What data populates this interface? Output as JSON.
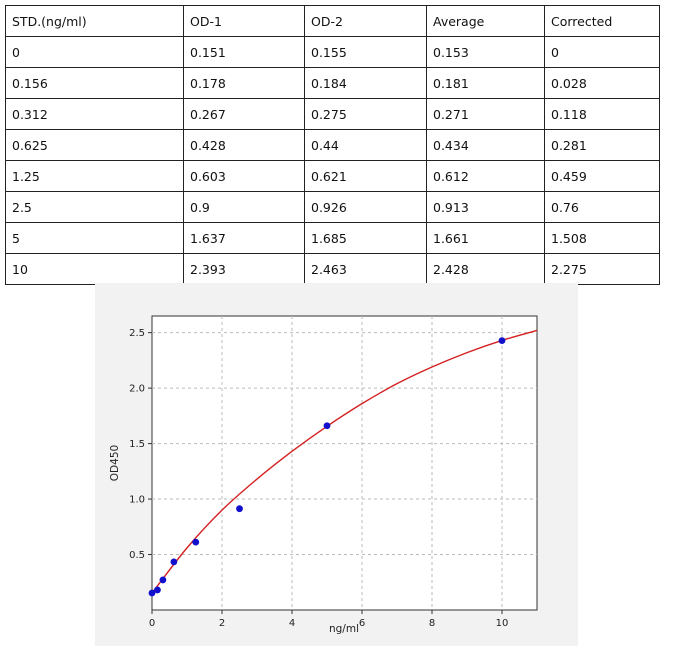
{
  "table": {
    "headers": [
      "STD.(ng/ml)",
      "OD-1",
      "OD-2",
      "Average",
      "Corrected"
    ],
    "rows": [
      [
        "0",
        "0.151",
        "0.155",
        "0.153",
        "0"
      ],
      [
        "0.156",
        "0.178",
        "0.184",
        "0.181",
        "0.028"
      ],
      [
        "0.312",
        "0.267",
        "0.275",
        "0.271",
        "0.118"
      ],
      [
        "0.625",
        "0.428",
        "0.44",
        "0.434",
        "0.281"
      ],
      [
        "1.25",
        "0.603",
        "0.621",
        "0.612",
        "0.459"
      ],
      [
        "2.5",
        "0.9",
        "0.926",
        "0.913",
        "0.76"
      ],
      [
        "5",
        "1.637",
        "1.685",
        "1.661",
        "1.508"
      ],
      [
        "10",
        "2.393",
        "2.463",
        "2.428",
        "2.275"
      ]
    ]
  },
  "chart_data": {
    "type": "scatter",
    "title": "",
    "xlabel": "ng/ml",
    "ylabel": "OD450",
    "xlim": [
      0,
      11
    ],
    "ylim": [
      0,
      2.65
    ],
    "xticks": [
      0,
      2,
      4,
      6,
      8,
      10
    ],
    "yticks": [
      0.5,
      1.0,
      1.5,
      2.0,
      2.5
    ],
    "xtick_labels": [
      "0",
      "2",
      "4",
      "6",
      "8",
      "10"
    ],
    "ytick_labels": [
      "0.5",
      "1.0",
      "1.5",
      "2.0",
      "2.5"
    ],
    "grid": true,
    "series": [
      {
        "kind": "points",
        "color": "#1010cc",
        "x": [
          0,
          0.156,
          0.312,
          0.625,
          1.25,
          2.5,
          5,
          10
        ],
        "y": [
          0.153,
          0.181,
          0.271,
          0.434,
          0.612,
          0.913,
          1.661,
          2.428
        ]
      },
      {
        "kind": "fit-curve",
        "color": "#d42020",
        "x": [
          0,
          1,
          2,
          3,
          4,
          5,
          6,
          7,
          8,
          9,
          10,
          11
        ],
        "y": [
          0.153,
          0.56,
          0.9,
          1.18,
          1.43,
          1.656,
          1.86,
          2.04,
          2.19,
          2.32,
          2.43,
          2.52
        ]
      }
    ]
  }
}
